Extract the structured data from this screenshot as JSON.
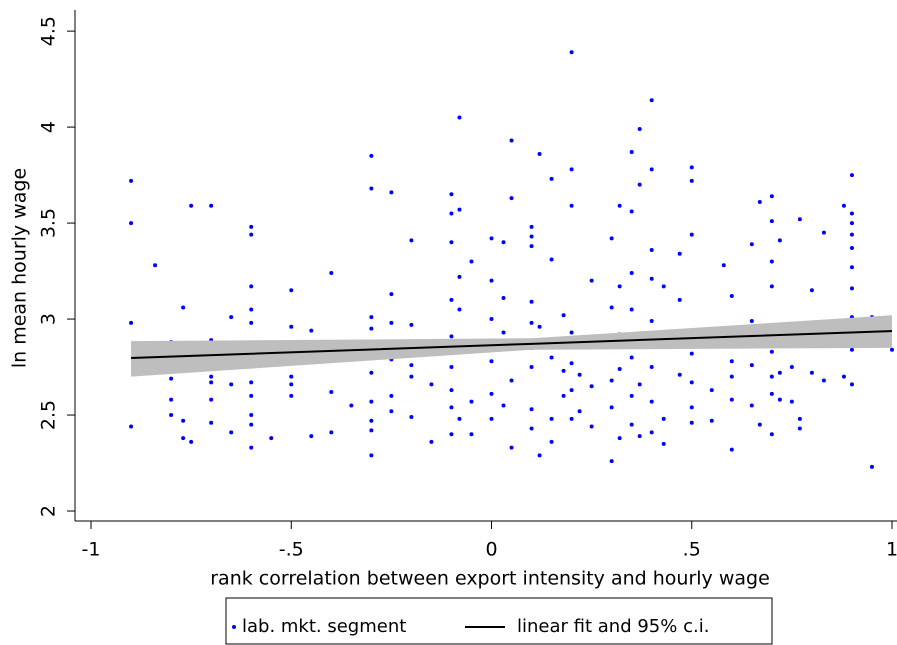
{
  "chart_data": {
    "type": "scatter",
    "x_label": "rank correlation between export intensity and hourly wage",
    "y_label": "ln mean hourly wage",
    "xlim": [
      -1.04,
      1.0125
    ],
    "ylim": [
      1.948,
      4.61
    ],
    "xticks": [
      -1,
      {
        "value": -0.5,
        "label": "-.5"
      },
      0,
      {
        "value": 0.5,
        "label": ".5"
      },
      1
    ],
    "yticks": [
      2,
      2.5,
      3,
      3.5,
      4,
      4.5
    ],
    "grid": false,
    "legend": "bottom",
    "series": [
      {
        "name": "lab. mkt. segment",
        "type": "scatter",
        "color": "#0000ff",
        "x": [
          -0.9,
          -0.9,
          -0.9,
          -0.9,
          -0.84,
          -0.8,
          -0.8,
          -0.8,
          -0.8,
          -0.77,
          -0.77,
          -0.77,
          -0.75,
          -0.75,
          -0.7,
          -0.7,
          -0.7,
          -0.7,
          -0.7,
          -0.7,
          -0.7,
          -0.65,
          -0.65,
          -0.65,
          -0.6,
          -0.6,
          -0.6,
          -0.6,
          -0.6,
          -0.6,
          -0.6,
          -0.6,
          -0.6,
          -0.6,
          -0.6,
          -0.6,
          -0.55,
          -0.5,
          -0.5,
          -0.5,
          -0.5,
          -0.5,
          -0.45,
          -0.45,
          -0.4,
          -0.4,
          -0.4,
          -0.4,
          -0.35,
          -0.3,
          -0.3,
          -0.3,
          -0.3,
          -0.3,
          -0.3,
          -0.3,
          -0.3,
          -0.3,
          -0.3,
          -0.25,
          -0.25,
          -0.25,
          -0.25,
          -0.25,
          -0.25,
          -0.2,
          -0.2,
          -0.2,
          -0.2,
          -0.2,
          -0.2,
          -0.15,
          -0.15,
          -0.1,
          -0.1,
          -0.1,
          -0.1,
          -0.1,
          -0.1,
          -0.1,
          -0.1,
          -0.1,
          -0.08,
          -0.08,
          -0.08,
          -0.08,
          -0.08,
          -0.05,
          -0.05,
          -0.05,
          -0.05,
          0,
          0,
          0,
          0,
          0,
          0,
          0.03,
          0.03,
          0.03,
          0.03,
          0.05,
          0.05,
          0.05,
          0.05,
          0.05,
          0.1,
          0.1,
          0.1,
          0.1,
          0.1,
          0.1,
          0.1,
          0.1,
          0.1,
          0.12,
          0.12,
          0.12,
          0.15,
          0.15,
          0.15,
          0.15,
          0.15,
          0.18,
          0.18,
          0.18,
          0.2,
          0.2,
          0.2,
          0.2,
          0.2,
          0.2,
          0.2,
          0.22,
          0.22,
          0.25,
          0.25,
          0.25,
          0.25,
          0.3,
          0.3,
          0.3,
          0.3,
          0.3,
          0.3,
          0.32,
          0.32,
          0.32,
          0.32,
          0.32,
          0.35,
          0.35,
          0.35,
          0.35,
          0.35,
          0.35,
          0.35,
          0.37,
          0.37,
          0.37,
          0.37,
          0.4,
          0.4,
          0.4,
          0.4,
          0.4,
          0.4,
          0.4,
          0.4,
          0.43,
          0.43,
          0.43,
          0.43,
          0.47,
          0.47,
          0.47,
          0.47,
          0.5,
          0.5,
          0.5,
          0.5,
          0.5,
          0.5,
          0.5,
          0.5,
          0.55,
          0.55,
          0.55,
          0.58,
          0.6,
          0.6,
          0.6,
          0.6,
          0.6,
          0.6,
          0.65,
          0.65,
          0.65,
          0.65,
          0.67,
          0.67,
          0.7,
          0.7,
          0.7,
          0.7,
          0.7,
          0.7,
          0.7,
          0.7,
          0.7,
          0.72,
          0.72,
          0.72,
          0.75,
          0.75,
          0.77,
          0.77,
          0.77,
          0.8,
          0.8,
          0.8,
          0.83,
          0.83,
          0.88,
          0.88,
          0.9,
          0.9,
          0.9,
          0.9,
          0.9,
          0.9,
          0.9,
          0.9,
          0.9,
          0.9,
          0.95,
          0.95,
          1
        ],
        "values": [
          3.72,
          3.5,
          2.98,
          2.44,
          3.28,
          2.88,
          2.69,
          2.58,
          2.5,
          2.47,
          2.38,
          3.06,
          3.59,
          2.36,
          3.59,
          2.89,
          2.84,
          2.7,
          2.67,
          2.58,
          2.46,
          3.01,
          2.66,
          2.41,
          3.48,
          3.44,
          3.17,
          3.05,
          2.98,
          2.87,
          2.81,
          2.67,
          2.6,
          2.5,
          2.45,
          2.33,
          2.38,
          3.15,
          2.96,
          2.7,
          2.66,
          2.6,
          2.94,
          2.39,
          3.24,
          2.84,
          2.62,
          2.41,
          2.55,
          3.85,
          3.68,
          3.01,
          2.95,
          2.84,
          2.72,
          2.57,
          2.47,
          2.42,
          2.29,
          3.66,
          3.13,
          2.98,
          2.79,
          2.6,
          2.52,
          3.41,
          2.97,
          2.85,
          2.76,
          2.7,
          2.49,
          2.66,
          2.36,
          3.65,
          3.55,
          3.4,
          3.1,
          2.91,
          2.75,
          2.63,
          2.54,
          2.4,
          4.05,
          3.57,
          3.22,
          3.05,
          2.48,
          3.3,
          2.85,
          2.57,
          2.4,
          3.42,
          3.2,
          3,
          2.78,
          2.61,
          2.48,
          3.4,
          3.11,
          2.93,
          2.55,
          3.93,
          3.63,
          2.88,
          2.68,
          2.33,
          3.48,
          3.43,
          3.38,
          3.09,
          2.98,
          2.85,
          2.75,
          2.53,
          2.43,
          3.86,
          2.96,
          2.29,
          3.73,
          3.31,
          2.8,
          2.48,
          2.36,
          3.02,
          2.73,
          2.6,
          4.39,
          3.78,
          3.59,
          2.93,
          2.77,
          2.63,
          2.48,
          2.71,
          2.52,
          3.2,
          2.88,
          2.65,
          2.44,
          3.42,
          3.06,
          2.86,
          2.68,
          2.54,
          2.26,
          3.59,
          3.17,
          2.92,
          2.74,
          2.38,
          3.87,
          3.56,
          3.24,
          3.05,
          2.8,
          2.6,
          2.45,
          3.99,
          3.7,
          2.66,
          2.39,
          4.14,
          3.78,
          3.36,
          3.21,
          2.99,
          2.75,
          2.57,
          2.41,
          3.17,
          2.92,
          2.48,
          2.35,
          3.34,
          3.1,
          2.93,
          2.71,
          3.79,
          3.72,
          3.44,
          2.94,
          2.82,
          2.67,
          2.54,
          2.46,
          2.89,
          2.63,
          2.47,
          3.28,
          3.12,
          2.89,
          2.78,
          2.7,
          2.58,
          2.32,
          3.39,
          2.99,
          2.76,
          2.55,
          3.61,
          2.45,
          3.64,
          3.51,
          3.3,
          3.17,
          2.96,
          2.83,
          2.7,
          2.61,
          2.4,
          3.41,
          2.72,
          2.58,
          2.75,
          2.57,
          3.52,
          2.48,
          2.43,
          3.15,
          2.96,
          2.72,
          3.45,
          2.68,
          3.59,
          2.7,
          3.75,
          3.55,
          3.5,
          3.44,
          3.37,
          3.27,
          3.16,
          3.01,
          2.84,
          2.66,
          3.01,
          2.23,
          2.84
        ]
      },
      {
        "name": "linear fit and 95% c.i.",
        "type": "line",
        "color": "#000000",
        "ci_color": "#bebebe",
        "x": [
          -0.9,
          0.1,
          1
        ],
        "values": [
          2.797,
          2.871,
          2.9375
        ],
        "ci_lower": [
          2.7,
          2.84,
          2.85
        ],
        "ci_upper": [
          2.885,
          2.9,
          3.02
        ]
      }
    ]
  }
}
